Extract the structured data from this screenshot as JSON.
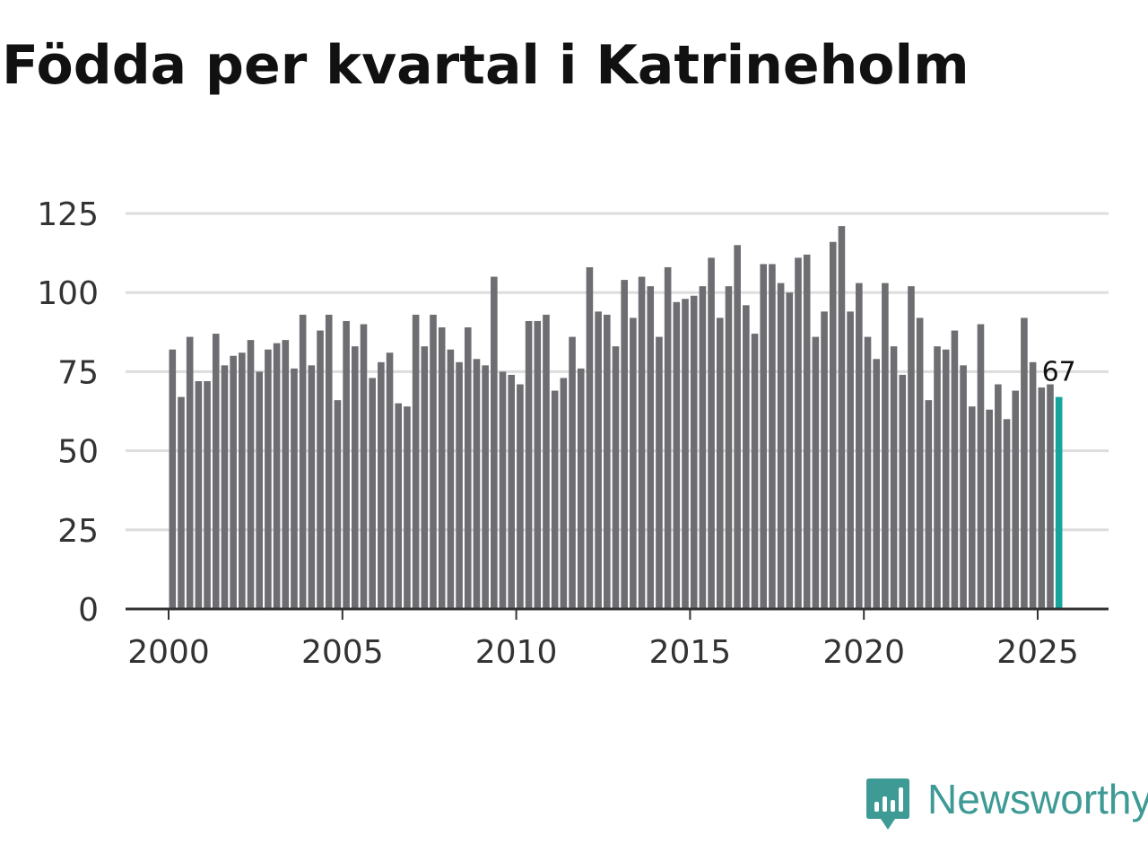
{
  "title": "Födda per kvartal i Katrineholm",
  "brand": {
    "name": "Newsworthy",
    "color": "#3e9a95"
  },
  "colors": {
    "bar": "#6e6d72",
    "highlight": "#16a59b",
    "grid": "#dddddd",
    "axis": "#333333"
  },
  "chart_data": {
    "type": "bar",
    "title": "Födda per kvartal i Katrineholm",
    "xlabel": "",
    "ylabel": "",
    "ylim": [
      0,
      125
    ],
    "yticks": [
      0,
      25,
      50,
      75,
      100,
      125
    ],
    "x_start": 2000,
    "periods_per_year": 4,
    "xticks": [
      2000,
      2005,
      2010,
      2015,
      2020,
      2025
    ],
    "grid": true,
    "series": [
      {
        "name": "Födda",
        "values": [
          82,
          67,
          86,
          72,
          72,
          87,
          77,
          80,
          81,
          85,
          75,
          82,
          84,
          85,
          76,
          93,
          77,
          88,
          93,
          66,
          91,
          83,
          90,
          73,
          78,
          81,
          65,
          64,
          93,
          83,
          93,
          89,
          82,
          78,
          89,
          79,
          77,
          105,
          75,
          74,
          71,
          91,
          91,
          93,
          69,
          73,
          86,
          76,
          108,
          94,
          93,
          83,
          104,
          92,
          105,
          102,
          86,
          108,
          97,
          98,
          99,
          102,
          111,
          92,
          102,
          115,
          96,
          87,
          109,
          109,
          103,
          100,
          111,
          112,
          86,
          94,
          116,
          121,
          94,
          103,
          86,
          79,
          103,
          83,
          74,
          102,
          92,
          66,
          83,
          82,
          88,
          77,
          64,
          90,
          63,
          71,
          60,
          69,
          92,
          78,
          70,
          71,
          67
        ]
      }
    ],
    "highlight_last": true,
    "annotations": [
      {
        "text": "67",
        "target": "last"
      }
    ]
  }
}
